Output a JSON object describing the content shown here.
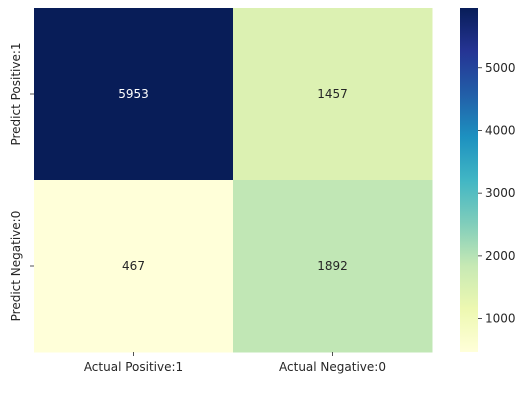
{
  "chart_data": {
    "type": "heatmap",
    "title": "",
    "xlabel": "",
    "ylabel": "",
    "x_categories": [
      "Actual Positive:1",
      "Actual Negative:0"
    ],
    "y_categories": [
      "Predict Positive:1",
      "Predict Negative:0"
    ],
    "values": [
      [
        5953,
        1457
      ],
      [
        467,
        1892
      ]
    ],
    "value_labels": [
      [
        "5953",
        "1457"
      ],
      [
        "467",
        "1892"
      ]
    ],
    "colormap": "YlGnBu",
    "vmin": 467,
    "vmax": 5953,
    "colorbar": {
      "ticks": [
        1000,
        2000,
        3000,
        4000,
        5000
      ],
      "tick_labels": [
        "1000",
        "2000",
        "3000",
        "4000",
        "5000"
      ]
    },
    "annot_colors": {
      "light": "#ffffff",
      "dark": "#262626"
    }
  }
}
